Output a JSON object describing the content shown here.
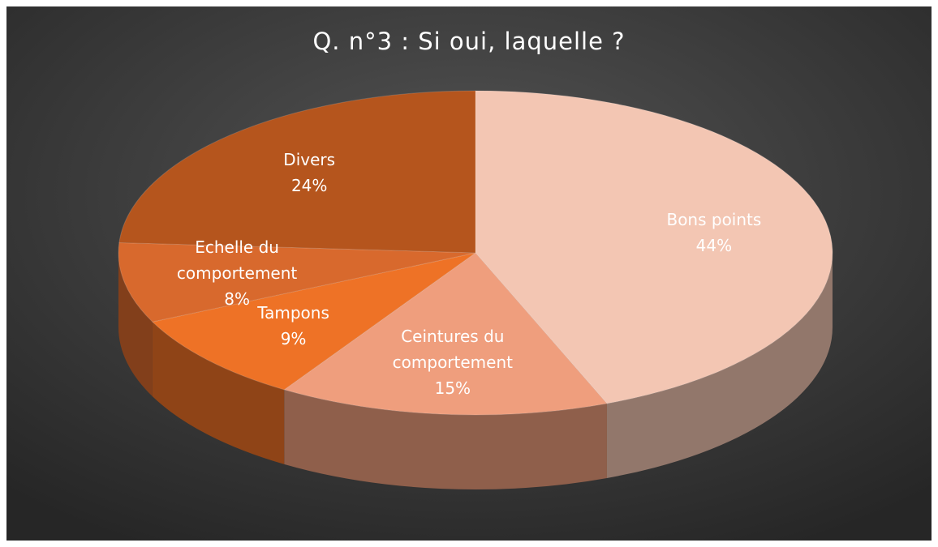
{
  "chart_data": {
    "type": "pie3d",
    "title": "Q. n°3 : Si oui, laquelle ?",
    "categories": [
      "Bons points",
      "Ceintures du comportement",
      "Tampons",
      "Echelle du comportement",
      "Divers"
    ],
    "values": [
      44,
      15,
      9,
      8,
      24
    ],
    "value_labels": [
      "44%",
      "15%",
      "9%",
      "8%",
      "24%"
    ],
    "colors": [
      "#f3c6b3",
      "#ef9e7d",
      "#ee7226",
      "#d8692d",
      "#b5551d"
    ]
  }
}
